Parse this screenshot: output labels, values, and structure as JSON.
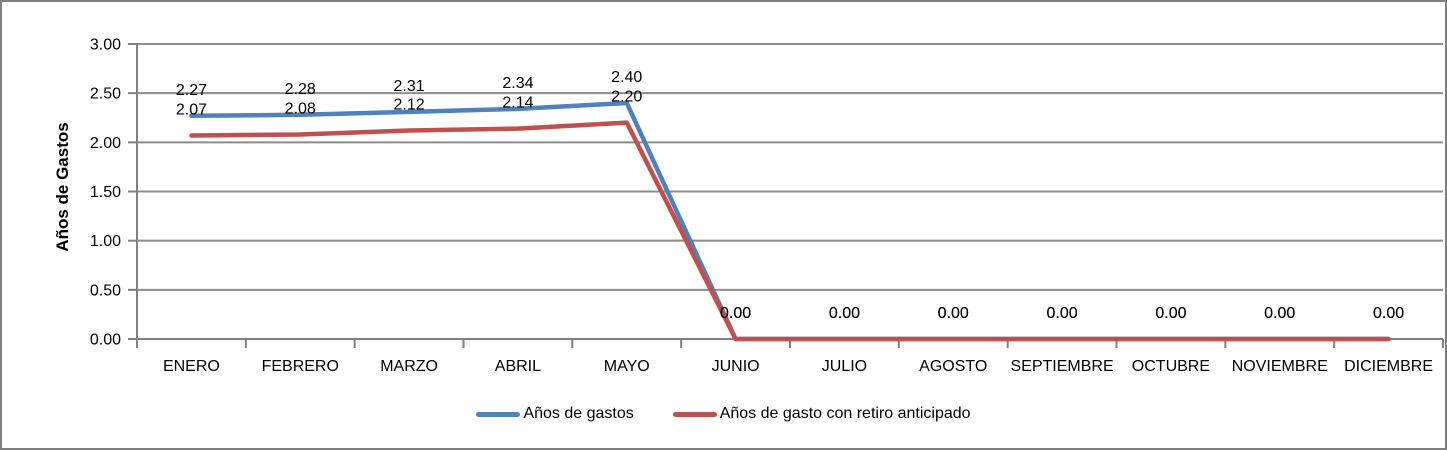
{
  "frame": {
    "border_color": "#7F7F7F",
    "background_color": "#FFFFFF"
  },
  "chart_data": {
    "type": "line",
    "title": "",
    "xlabel": "",
    "ylabel": "Años de Gastos",
    "categories": [
      "ENERO",
      "FEBRERO",
      "MARZO",
      "ABRIL",
      "MAYO",
      "JUNIO",
      "JULIO",
      "AGOSTO",
      "SEPTIEMBRE",
      "OCTUBRE",
      "NOVIEMBRE",
      "DICIEMBRE"
    ],
    "series": [
      {
        "name": "Años de gastos",
        "color": "#4F81BD",
        "values": [
          2.27,
          2.28,
          2.31,
          2.34,
          2.4,
          0.0,
          0.0,
          0.0,
          0.0,
          0.0,
          0.0,
          0.0
        ]
      },
      {
        "name": "Años de gasto con retiro anticipado",
        "color": "#C0504D",
        "values": [
          2.07,
          2.08,
          2.12,
          2.14,
          2.2,
          0.0,
          0.0,
          0.0,
          0.0,
          0.0,
          0.0,
          0.0
        ]
      }
    ],
    "ylim": [
      0,
      3
    ],
    "ytick_step": 0.5,
    "ytick_labels": [
      "0.00",
      "0.50",
      "1.00",
      "1.50",
      "2.00",
      "2.50",
      "3.00"
    ],
    "data_labels_shown": true,
    "data_labels_decimals": 2,
    "grid": true,
    "legend_position": "bottom",
    "axis_color": "#808080",
    "gridline_color": "#8C8C8C",
    "text_color": "#000000"
  }
}
